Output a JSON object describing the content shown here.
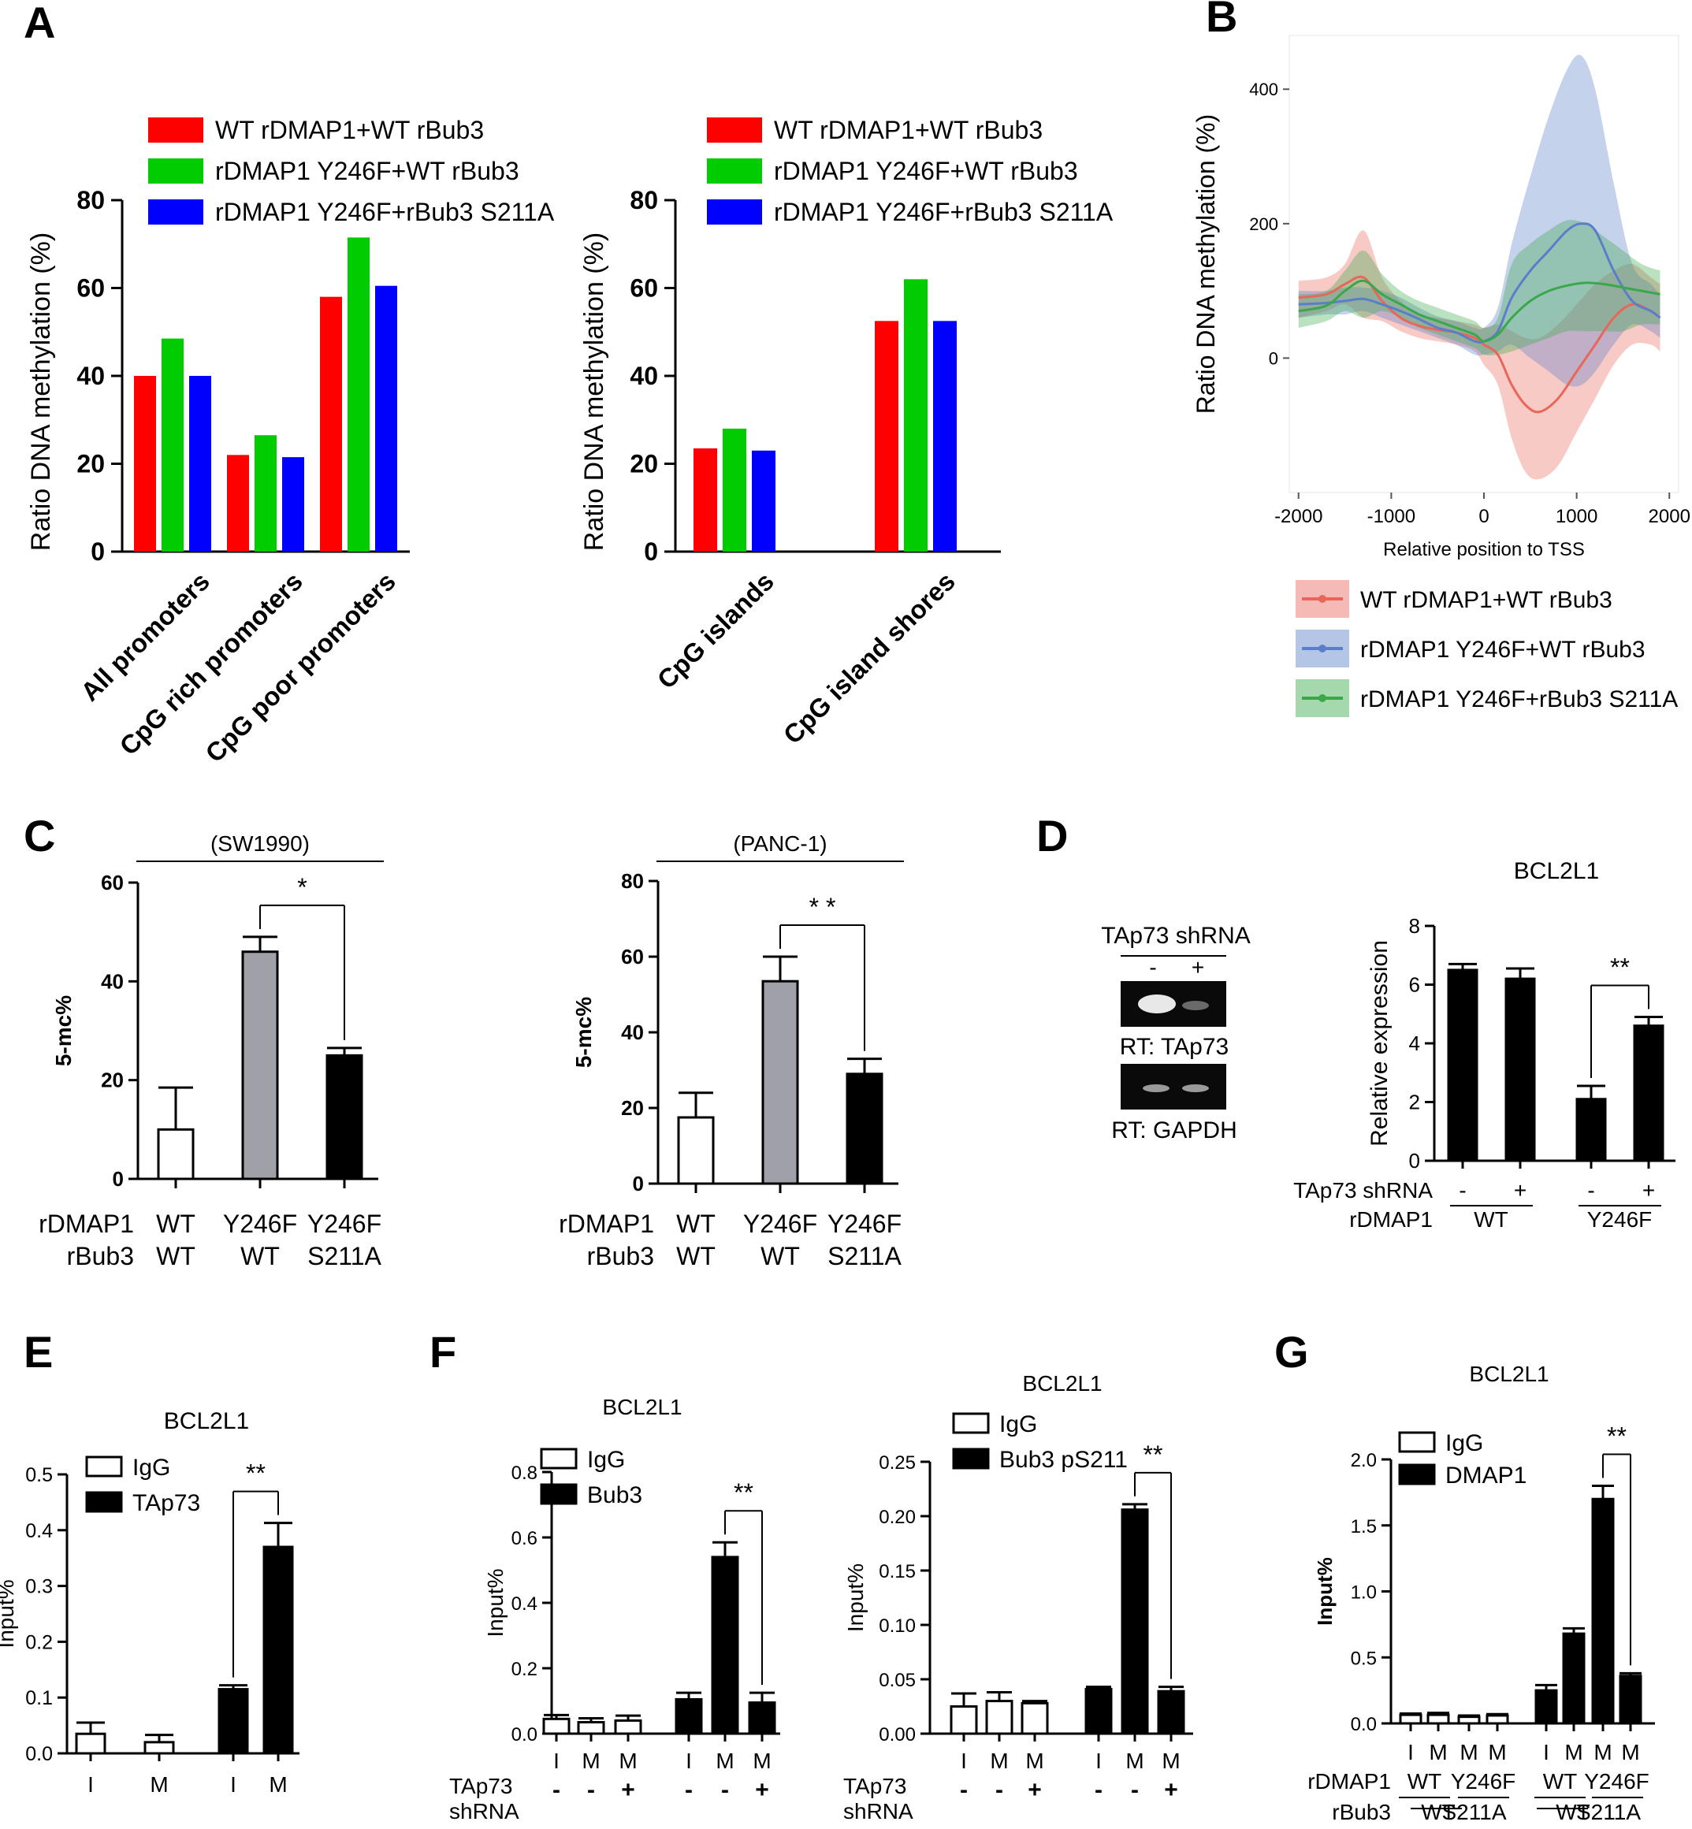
{
  "panel_letters": [
    "A",
    "B",
    "C",
    "D",
    "E",
    "F",
    "G"
  ],
  "colors": {
    "red": "#ff0000",
    "green": "#00cc00",
    "blue": "#0000ff",
    "gray": "#a0a0a8",
    "black": "#000000",
    "b_red": "#e8665a",
    "b_blue": "#5a7ec8",
    "b_green": "#3aa84a"
  },
  "chart_data": [
    {
      "id": "A1",
      "type": "bar",
      "panel": "A",
      "ylabel": "Ratio DNA methylation (%)",
      "ylim": [
        0,
        80
      ],
      "yticks": [
        0,
        20,
        40,
        60,
        80
      ],
      "categories": [
        "All promoters",
        "CpG rich promoters",
        "CpG poor promoters"
      ],
      "series": [
        {
          "name": "WT rDMAP1+WT rBub3",
          "color": "#ff0000",
          "values": [
            40,
            22,
            58
          ]
        },
        {
          "name": "rDMAP1 Y246F+WT rBub3",
          "color": "#00cc00",
          "values": [
            48.5,
            26.5,
            71.5
          ]
        },
        {
          "name": "rDMAP1 Y246F+rBub3 S211A",
          "color": "#0000ff",
          "values": [
            40,
            21.5,
            60.5
          ]
        }
      ]
    },
    {
      "id": "A2",
      "type": "bar",
      "panel": "A",
      "ylabel": "Ratio DNA methylation (%)",
      "ylim": [
        0,
        80
      ],
      "yticks": [
        0,
        20,
        40,
        60,
        80
      ],
      "categories": [
        "CpG islands",
        "CpG island shores"
      ],
      "series": [
        {
          "name": "WT rDMAP1+WT rBub3",
          "color": "#ff0000",
          "values": [
            23.5,
            52.5
          ]
        },
        {
          "name": "rDMAP1 Y246F+WT rBub3",
          "color": "#00cc00",
          "values": [
            28,
            62
          ]
        },
        {
          "name": "rDMAP1 Y246F+rBub3 S211A",
          "color": "#0000ff",
          "values": [
            23,
            52.5
          ]
        }
      ]
    },
    {
      "id": "B",
      "type": "line",
      "panel": "B",
      "xlabel": "Relative position to TSS",
      "ylabel": "Ratio DNA methylation (%)",
      "xlim": [
        -2100,
        2100
      ],
      "xticks": [
        -2000,
        -1000,
        0,
        1000,
        2000
      ],
      "ylim": [
        -200,
        480
      ],
      "yticks": [
        0,
        200,
        400
      ],
      "series": [
        {
          "name": "WT rDMAP1+WT rBub3",
          "color": "#e8665a",
          "x": [
            -2000,
            -1700,
            -1500,
            -1300,
            -1100,
            -900,
            -700,
            -500,
            -300,
            -100,
            0,
            150,
            300,
            450,
            600,
            800,
            1000,
            1200,
            1400,
            1600,
            1800,
            1900
          ],
          "y": [
            90,
            95,
            110,
            120,
            85,
            60,
            48,
            42,
            38,
            30,
            20,
            5,
            -40,
            -70,
            -80,
            -60,
            -20,
            20,
            60,
            80,
            70,
            60
          ],
          "lower": [
            60,
            70,
            80,
            60,
            55,
            40,
            30,
            25,
            20,
            10,
            -10,
            -40,
            -120,
            -170,
            -180,
            -160,
            -110,
            -60,
            -10,
            20,
            20,
            10
          ],
          "upper": [
            115,
            120,
            140,
            190,
            120,
            85,
            65,
            60,
            55,
            50,
            45,
            50,
            40,
            30,
            30,
            50,
            80,
            110,
            130,
            140,
            120,
            110
          ]
        },
        {
          "name": "rDMAP1 Y246F+WT rBub3",
          "color": "#5a7ec8",
          "x": [
            -2000,
            -1700,
            -1500,
            -1300,
            -1100,
            -900,
            -700,
            -500,
            -300,
            -100,
            0,
            150,
            300,
            500,
            700,
            900,
            1050,
            1200,
            1400,
            1600,
            1800,
            1900
          ],
          "y": [
            80,
            82,
            85,
            88,
            80,
            70,
            58,
            45,
            38,
            25,
            25,
            40,
            90,
            130,
            160,
            190,
            200,
            190,
            130,
            85,
            70,
            60
          ],
          "lower": [
            60,
            65,
            65,
            70,
            60,
            50,
            40,
            30,
            20,
            5,
            5,
            10,
            20,
            0,
            -20,
            -40,
            -40,
            -20,
            20,
            50,
            40,
            30
          ],
          "upper": [
            100,
            100,
            105,
            105,
            100,
            90,
            75,
            62,
            55,
            45,
            45,
            75,
            170,
            270,
            360,
            430,
            450,
            400,
            260,
            140,
            110,
            95
          ]
        },
        {
          "name": "rDMAP1 Y246F+rBub3 S211A",
          "color": "#3aa84a",
          "x": [
            -2000,
            -1700,
            -1500,
            -1300,
            -1100,
            -900,
            -700,
            -500,
            -300,
            -100,
            0,
            150,
            300,
            500,
            700,
            900,
            1100,
            1300,
            1500,
            1700,
            1900
          ],
          "y": [
            70,
            78,
            100,
            115,
            95,
            80,
            65,
            55,
            45,
            35,
            25,
            35,
            60,
            85,
            100,
            108,
            112,
            110,
            105,
            100,
            95
          ],
          "lower": [
            45,
            55,
            70,
            60,
            70,
            60,
            45,
            35,
            25,
            15,
            5,
            5,
            10,
            20,
            30,
            40,
            40,
            40,
            40,
            50,
            50
          ],
          "upper": [
            95,
            100,
            130,
            160,
            125,
            100,
            85,
            75,
            65,
            55,
            45,
            60,
            140,
            170,
            190,
            205,
            200,
            180,
            160,
            140,
            130
          ]
        }
      ]
    },
    {
      "id": "C1",
      "type": "bar",
      "panel": "C",
      "title": "(SW1990)",
      "ylabel": "5-mc%",
      "ylim": [
        0,
        60
      ],
      "yticks": [
        0,
        20,
        40,
        60
      ],
      "row_labels": [
        "rDMAP1",
        "rBub3"
      ],
      "categories": [
        [
          "WT",
          "WT"
        ],
        [
          "Y246F",
          "WT"
        ],
        [
          "Y246F",
          "S211A"
        ]
      ],
      "bars": [
        {
          "value": 10,
          "err": 8.5,
          "fill": "white"
        },
        {
          "value": 46,
          "err": 3,
          "fill": "gray"
        },
        {
          "value": 25,
          "err": 1.5,
          "fill": "black"
        }
      ],
      "significance": [
        {
          "from": 1,
          "to": 2,
          "label": "*"
        }
      ]
    },
    {
      "id": "C2",
      "type": "bar",
      "panel": "C",
      "title": "(PANC-1)",
      "ylabel": "5-mc%",
      "ylim": [
        0,
        80
      ],
      "yticks": [
        0,
        20,
        40,
        60,
        80
      ],
      "row_labels": [
        "rDMAP1",
        "rBub3"
      ],
      "categories": [
        [
          "WT",
          "WT"
        ],
        [
          "Y246F",
          "WT"
        ],
        [
          "Y246F",
          "S211A"
        ]
      ],
      "bars": [
        {
          "value": 17.5,
          "err": 6.5,
          "fill": "white"
        },
        {
          "value": 53.5,
          "err": 6.5,
          "fill": "gray"
        },
        {
          "value": 29,
          "err": 4,
          "fill": "black"
        }
      ],
      "significance": [
        {
          "from": 1,
          "to": 2,
          "label": "* *"
        }
      ]
    },
    {
      "id": "D",
      "type": "bar",
      "panel": "D",
      "title": "BCL2L1",
      "ylabel": "Relative expression",
      "ylim": [
        0,
        8
      ],
      "yticks": [
        0,
        2,
        4,
        6,
        8
      ],
      "row_labels": [
        "TAp73 shRNA",
        "rDMAP1"
      ],
      "bars": [
        {
          "value": 6.5,
          "err": 0.2,
          "fill": "black",
          "shrna": "-"
        },
        {
          "value": 6.2,
          "err": 0.35,
          "fill": "black",
          "shrna": "+"
        },
        {
          "value": 2.1,
          "err": 0.45,
          "fill": "black",
          "shrna": "-"
        },
        {
          "value": 4.6,
          "err": 0.3,
          "fill": "black",
          "shrna": "+"
        }
      ],
      "groups": [
        "WT",
        "Y246F"
      ],
      "significance": [
        {
          "from": 2,
          "to": 3,
          "label": "**"
        }
      ]
    },
    {
      "id": "E",
      "type": "bar",
      "panel": "E",
      "title": "BCL2L1",
      "ylabel": "Input%",
      "ylim": [
        0,
        0.5
      ],
      "yticks": [
        "0.0",
        "0.1",
        "0.2",
        "0.3",
        "0.4",
        "0.5"
      ],
      "legend": [
        {
          "label": "IgG",
          "fill": "white"
        },
        {
          "label": "TAp73",
          "fill": "black"
        }
      ],
      "x_labels": [
        "I",
        "M",
        "I",
        "M"
      ],
      "bars": [
        {
          "value": 0.035,
          "err": 0.02,
          "fill": "white"
        },
        {
          "value": 0.02,
          "err": 0.013,
          "fill": "white"
        },
        {
          "value": 0.115,
          "err": 0.007,
          "fill": "black"
        },
        {
          "value": 0.37,
          "err": 0.043,
          "fill": "black"
        }
      ],
      "significance": [
        {
          "from": 2,
          "to": 3,
          "label": "**"
        }
      ]
    },
    {
      "id": "F1",
      "type": "bar",
      "panel": "F",
      "title": "BCL2L1",
      "ylabel": "Input%",
      "ylim": [
        0,
        0.8
      ],
      "yticks": [
        "0.0",
        "0.2",
        "0.4",
        "0.6",
        "0.8"
      ],
      "legend": [
        {
          "label": "IgG",
          "fill": "white"
        },
        {
          "label": "Bub3",
          "fill": "black"
        }
      ],
      "x_labels": [
        "I",
        "M",
        "M",
        "I",
        "M",
        "M"
      ],
      "shrna_label": [
        "TAp73",
        "shRNA"
      ],
      "shrna": [
        "-",
        "-",
        "+",
        "-",
        "-",
        "+"
      ],
      "bars": [
        {
          "value": 0.045,
          "err": 0.012,
          "fill": "white"
        },
        {
          "value": 0.035,
          "err": 0.012,
          "fill": "white"
        },
        {
          "value": 0.04,
          "err": 0.015,
          "fill": "white"
        },
        {
          "value": 0.105,
          "err": 0.02,
          "fill": "black"
        },
        {
          "value": 0.54,
          "err": 0.045,
          "fill": "black"
        },
        {
          "value": 0.095,
          "err": 0.03,
          "fill": "black"
        }
      ],
      "significance": [
        {
          "from": 4,
          "to": 5,
          "label": "**"
        }
      ]
    },
    {
      "id": "F2",
      "type": "bar",
      "panel": "F",
      "title": "BCL2L1",
      "ylabel": "Input%",
      "ylim": [
        0,
        0.25
      ],
      "yticks": [
        "0.00",
        "0.05",
        "0.10",
        "0.15",
        "0.20",
        "0.25"
      ],
      "legend": [
        {
          "label": "IgG",
          "fill": "white"
        },
        {
          "label": "Bub3 pS211",
          "fill": "black"
        }
      ],
      "x_labels": [
        "I",
        "M",
        "M",
        "I",
        "M",
        "M"
      ],
      "shrna_label": [
        "TAp73",
        "shRNA"
      ],
      "shrna": [
        "-",
        "-",
        "+",
        "-",
        "-",
        "+"
      ],
      "bars": [
        {
          "value": 0.025,
          "err": 0.012,
          "fill": "white"
        },
        {
          "value": 0.03,
          "err": 0.008,
          "fill": "white"
        },
        {
          "value": 0.028,
          "err": 0.002,
          "fill": "white"
        },
        {
          "value": 0.041,
          "err": 0.002,
          "fill": "black"
        },
        {
          "value": 0.206,
          "err": 0.005,
          "fill": "black"
        },
        {
          "value": 0.039,
          "err": 0.004,
          "fill": "black"
        }
      ],
      "significance": [
        {
          "from": 4,
          "to": 5,
          "label": "**"
        }
      ]
    },
    {
      "id": "G",
      "type": "bar",
      "panel": "G",
      "title": "BCL2L1",
      "ylabel": "Input%",
      "ylim": [
        0,
        2.0
      ],
      "yticks": [
        "0.0",
        "0.5",
        "1.0",
        "1.5",
        "2.0"
      ],
      "legend": [
        {
          "label": "IgG",
          "fill": "white"
        },
        {
          "label": "DMAP1",
          "fill": "black"
        }
      ],
      "x_labels": [
        "I",
        "M",
        "M",
        "M",
        "I",
        "M",
        "M",
        "M"
      ],
      "row_labels": [
        "rDMAP1",
        "rBub3"
      ],
      "rdmap1_groups": [
        "WT",
        "Y246F",
        "WT",
        "Y246F"
      ],
      "rbub3_groups": [
        "WT",
        "S211A",
        "WT",
        "S211A"
      ],
      "bars": [
        {
          "value": 0.065,
          "err": 0.01,
          "fill": "white"
        },
        {
          "value": 0.065,
          "err": 0.015,
          "fill": "white"
        },
        {
          "value": 0.05,
          "err": 0.01,
          "fill": "white"
        },
        {
          "value": 0.06,
          "err": 0.01,
          "fill": "white"
        },
        {
          "value": 0.25,
          "err": 0.04,
          "fill": "black"
        },
        {
          "value": 0.68,
          "err": 0.04,
          "fill": "black"
        },
        {
          "value": 1.7,
          "err": 0.1,
          "fill": "black"
        },
        {
          "value": 0.36,
          "err": 0.02,
          "fill": "black"
        }
      ],
      "significance": [
        {
          "from": 6,
          "to": 7,
          "label": "**"
        }
      ]
    }
  ],
  "blot": {
    "title": "TAp73 shRNA",
    "lanes": [
      "-",
      "+"
    ],
    "captions": [
      "RT: TAp73",
      "RT: GAPDH"
    ]
  }
}
